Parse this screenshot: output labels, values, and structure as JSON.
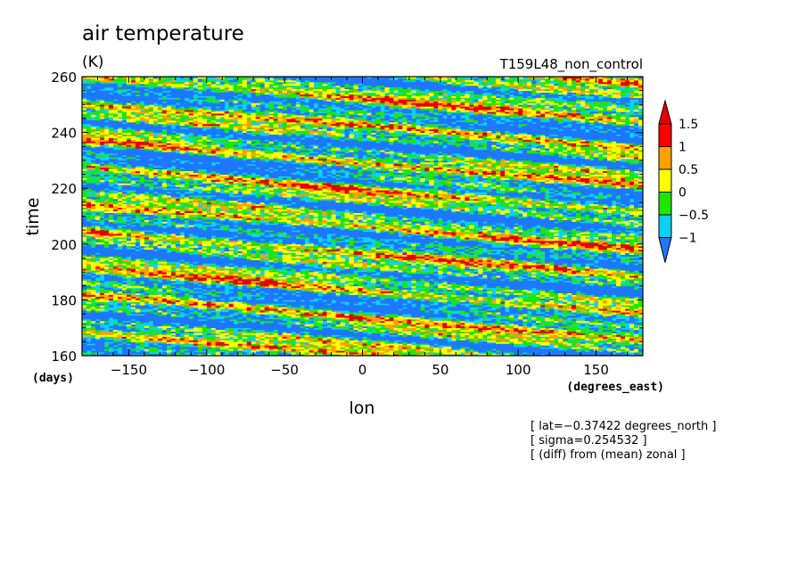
{
  "chart_data": {
    "type": "heatmap",
    "title": "air temperature",
    "units": "(K)",
    "experiment": "T159L48_non_control",
    "xlabel": "lon",
    "ylabel": "time",
    "x_units": "(degrees_east)",
    "y_units": "(days)",
    "xlim": [
      -180,
      180
    ],
    "ylim": [
      160,
      260
    ],
    "x_ticks": [
      -150,
      -100,
      -50,
      0,
      50,
      100,
      150
    ],
    "x_tick_labels": [
      "−150",
      "−100",
      "−50",
      "0",
      "50",
      "100",
      "150"
    ],
    "y_ticks": [
      160,
      180,
      200,
      220,
      240,
      260
    ],
    "y_tick_labels": [
      "160",
      "180",
      "200",
      "220",
      "240",
      "260"
    ],
    "colorbar": {
      "levels": [
        -1,
        -0.5,
        0,
        0.5,
        1,
        1.5
      ],
      "labels": [
        "−1",
        "−0.5",
        "0",
        "0.5",
        "1",
        "1.5"
      ],
      "colors": [
        "#1e78ff",
        "#0ad2f5",
        "#1ee600",
        "#ffff00",
        "#ffa000",
        "#ff0000"
      ],
      "below_color": "#1e78ff",
      "above_color": "#e60000",
      "extend": "both"
    },
    "notes": [
      "[ lat=−0.37422 degrees_north ]",
      "[ sigma=0.254532 ]",
      "[ (diff) from (mean) zonal ]"
    ]
  }
}
